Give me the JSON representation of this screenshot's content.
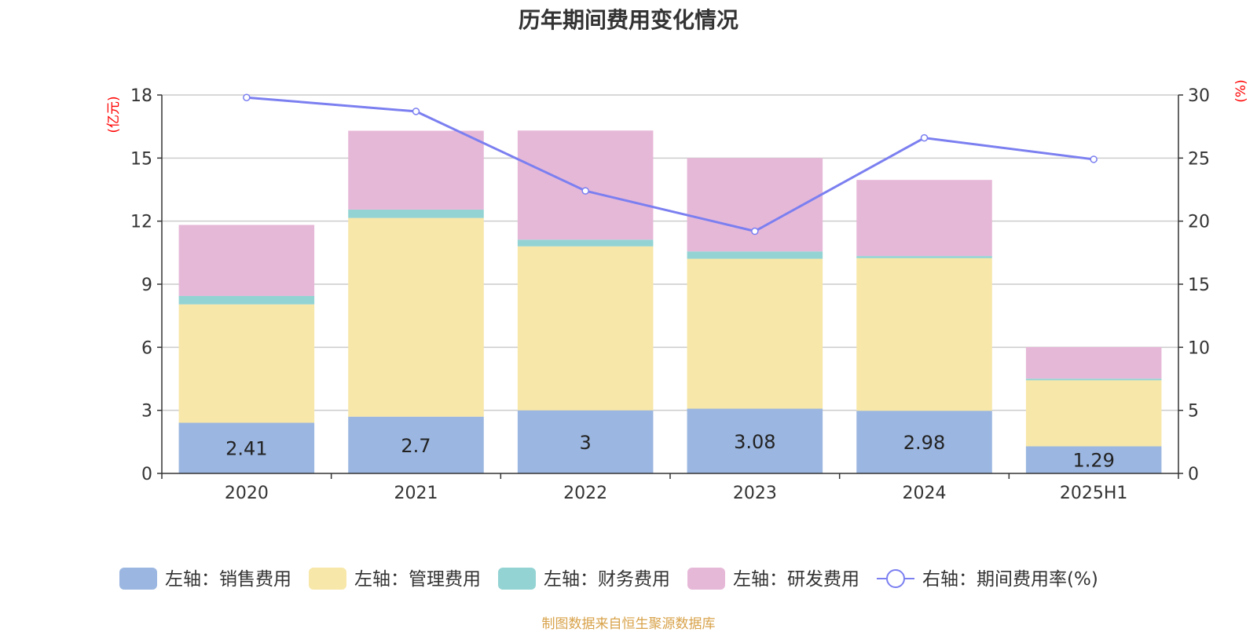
{
  "chart_data": {
    "type": "bar",
    "stacked": true,
    "title": "历年期间费用变化情况",
    "categories": [
      "2020",
      "2021",
      "2022",
      "2023",
      "2024",
      "2025H1"
    ],
    "ylabel_left": "(亿元)",
    "ylabel_right": "(%)",
    "ylim_left": [
      0,
      18
    ],
    "ylim_right": [
      0,
      30
    ],
    "yticks_left": [
      "0",
      "3",
      "6",
      "9",
      "12",
      "15",
      "18"
    ],
    "yticks_right": [
      "0",
      "5",
      "10",
      "15",
      "20",
      "25",
      "30"
    ],
    "grid": true,
    "legend_position": "bottom",
    "series": [
      {
        "name": "左轴：销售费用",
        "axis": "left",
        "kind": "bar",
        "color": "#9bb6e0",
        "values": [
          2.41,
          2.7,
          3,
          3.08,
          2.98,
          1.29
        ],
        "labels": [
          "2.41",
          "2.7",
          "3",
          "3.08",
          "2.98",
          "1.29"
        ]
      },
      {
        "name": "左轴：管理费用",
        "axis": "left",
        "kind": "bar",
        "color": "#f7e7a8",
        "values": [
          5.63,
          9.45,
          7.8,
          7.13,
          7.26,
          3.14
        ]
      },
      {
        "name": "左轴：财务费用",
        "axis": "left",
        "kind": "bar",
        "color": "#94d3d3",
        "values": [
          0.4,
          0.4,
          0.32,
          0.35,
          0.1,
          0.08
        ]
      },
      {
        "name": "左轴：研发费用",
        "axis": "left",
        "kind": "bar",
        "color": "#e6b8d8",
        "values": [
          3.38,
          3.75,
          5.19,
          4.44,
          3.62,
          1.5
        ]
      },
      {
        "name": "右轴：期间费用率(%)",
        "axis": "right",
        "kind": "line",
        "color": "#7b7ff0",
        "values": [
          29.8,
          28.7,
          22.4,
          19.2,
          26.6,
          24.9
        ]
      }
    ]
  },
  "source_note": "制图数据来自恒生聚源数据库"
}
